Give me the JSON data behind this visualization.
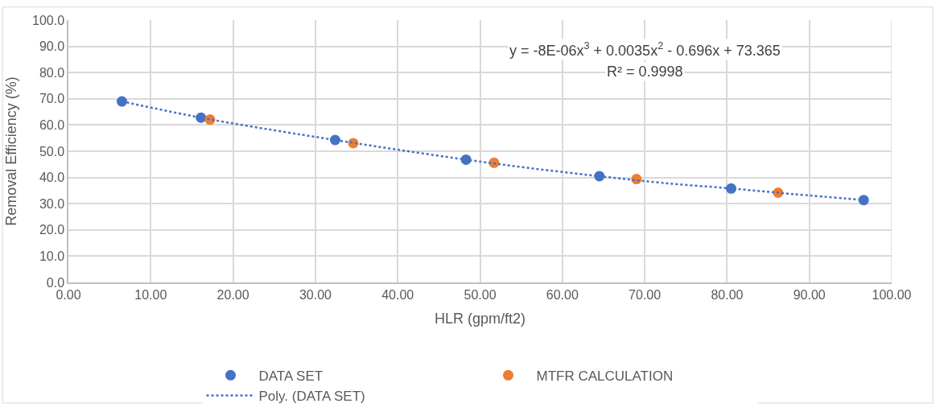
{
  "chart_data": {
    "type": "scatter",
    "xlabel": "HLR (gpm/ft2)",
    "ylabel": "Removal Efficiency (%)",
    "xlim": [
      0,
      100
    ],
    "ylim": [
      0,
      100
    ],
    "xticks": [
      {
        "value": 0,
        "label": "0.00"
      },
      {
        "value": 10,
        "label": "10.00"
      },
      {
        "value": 20,
        "label": "20.00"
      },
      {
        "value": 30,
        "label": "30.00"
      },
      {
        "value": 40,
        "label": "40.00"
      },
      {
        "value": 50,
        "label": "50.00"
      },
      {
        "value": 60,
        "label": "60.00"
      },
      {
        "value": 70,
        "label": "70.00"
      },
      {
        "value": 80,
        "label": "80.00"
      },
      {
        "value": 90,
        "label": "90.00"
      },
      {
        "value": 100,
        "label": "100.00"
      }
    ],
    "yticks": [
      {
        "value": 0,
        "label": "0.0"
      },
      {
        "value": 10,
        "label": "10.0"
      },
      {
        "value": 20,
        "label": "20.0"
      },
      {
        "value": 30,
        "label": "30.0"
      },
      {
        "value": 40,
        "label": "40.0"
      },
      {
        "value": 50,
        "label": "50.0"
      },
      {
        "value": 60,
        "label": "60.0"
      },
      {
        "value": 70,
        "label": "70.0"
      },
      {
        "value": 80,
        "label": "80.0"
      },
      {
        "value": 90,
        "label": "90.0"
      },
      {
        "value": 100,
        "label": "100.0"
      }
    ],
    "grid": true,
    "legend": "bottom",
    "marker": "circle",
    "series": [
      {
        "name": "DATA SET",
        "color": "#4472c4",
        "x": [
          6.5,
          16.1,
          32.4,
          48.3,
          64.5,
          80.5,
          96.6
        ],
        "values": [
          69.0,
          62.8,
          54.3,
          46.8,
          40.5,
          35.8,
          31.4
        ]
      },
      {
        "name": "MTFR CALCULATION",
        "color": "#ed7d31",
        "x": [
          17.2,
          34.6,
          51.7,
          69.0,
          86.2
        ],
        "values": [
          62.1,
          53.1,
          45.6,
          39.4,
          34.2
        ]
      },
      {
        "name": "Poly. (DATA SET)",
        "type": "line",
        "line_style": "dotted",
        "marker": "none",
        "color": "#4472c4",
        "x": [
          6.5,
          16.1,
          25,
          32.4,
          40,
          48.3,
          56,
          64.5,
          72,
          80.5,
          88,
          96.6
        ],
        "values": [
          69.0,
          62.8,
          58.0,
          54.3,
          50.6,
          46.8,
          43.6,
          40.5,
          38.0,
          35.8,
          33.7,
          31.4
        ]
      }
    ],
    "annotations": [
      "y = -8E-06x$^{3}$ + 0.0035x$^{2}$ - 0.696x + 73.365",
      "R² = 0.9998"
    ]
  }
}
